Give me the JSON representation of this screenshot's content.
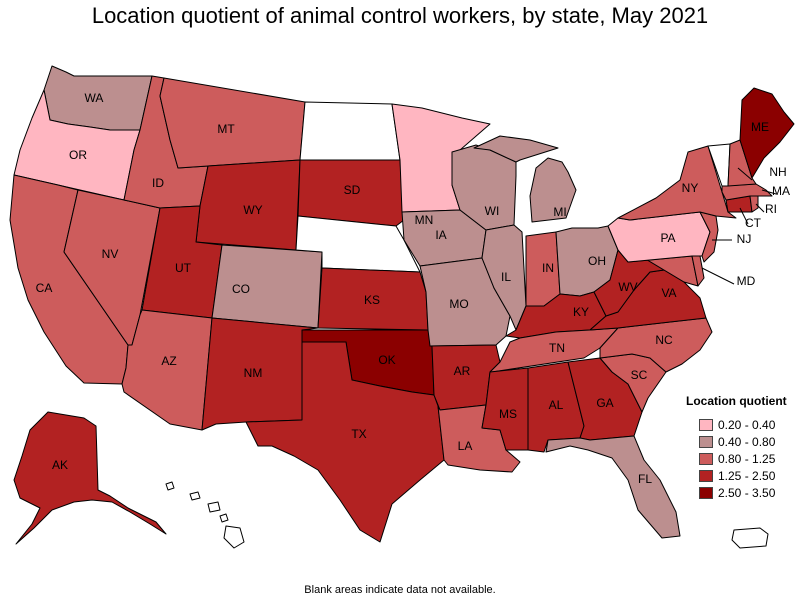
{
  "title": "Location quotient of animal control workers, by state, May 2021",
  "note": "Blank areas indicate data not available.",
  "legend": {
    "title": "Location quotient",
    "items": [
      {
        "label": "0.20 - 0.40",
        "color": "#ffb6c1"
      },
      {
        "label": "0.40 - 0.80",
        "color": "#bc8f8f"
      },
      {
        "label": "0.80 - 1.25",
        "color": "#cd5c5c"
      },
      {
        "label": "1.25 - 2.50",
        "color": "#b22222"
      },
      {
        "label": "2.50 - 3.50",
        "color": "#8b0000"
      }
    ]
  },
  "states": {
    "WA": {
      "label": "WA",
      "class": "0.40 - 0.80"
    },
    "OR": {
      "label": "OR",
      "class": "0.20 - 0.40"
    },
    "CA": {
      "label": "CA",
      "class": "0.80 - 1.25"
    },
    "NV": {
      "label": "NV",
      "class": "0.80 - 1.25"
    },
    "ID": {
      "label": "ID",
      "class": "0.80 - 1.25"
    },
    "MT": {
      "label": "MT",
      "class": "0.80 - 1.25"
    },
    "WY": {
      "label": "WY",
      "class": "1.25 - 2.50"
    },
    "UT": {
      "label": "UT",
      "class": "1.25 - 2.50"
    },
    "AZ": {
      "label": "AZ",
      "class": "0.80 - 1.25"
    },
    "CO": {
      "label": "CO",
      "class": "0.40 - 0.80"
    },
    "NM": {
      "label": "NM",
      "class": "1.25 - 2.50"
    },
    "ND": {
      "label": "",
      "class": "no data"
    },
    "SD": {
      "label": "SD",
      "class": "1.25 - 2.50"
    },
    "NE": {
      "label": "",
      "class": "no data"
    },
    "KS": {
      "label": "KS",
      "class": "1.25 - 2.50"
    },
    "OK": {
      "label": "OK",
      "class": "2.50 - 3.50"
    },
    "TX": {
      "label": "TX",
      "class": "1.25 - 2.50"
    },
    "MN": {
      "label": "MN",
      "class": "0.20 - 0.40"
    },
    "IA": {
      "label": "IA",
      "class": "0.40 - 0.80"
    },
    "MO": {
      "label": "MO",
      "class": "0.40 - 0.80"
    },
    "AR": {
      "label": "AR",
      "class": "1.25 - 2.50"
    },
    "LA": {
      "label": "LA",
      "class": "0.80 - 1.25"
    },
    "WI": {
      "label": "WI",
      "class": "0.40 - 0.80"
    },
    "IL": {
      "label": "IL",
      "class": "0.40 - 0.80"
    },
    "MI": {
      "label": "MI",
      "class": "0.40 - 0.80"
    },
    "IN": {
      "label": "IN",
      "class": "0.80 - 1.25"
    },
    "OH": {
      "label": "OH",
      "class": "0.40 - 0.80"
    },
    "KY": {
      "label": "KY",
      "class": "1.25 - 2.50"
    },
    "TN": {
      "label": "TN",
      "class": "0.80 - 1.25"
    },
    "MS": {
      "label": "MS",
      "class": "1.25 - 2.50"
    },
    "AL": {
      "label": "AL",
      "class": "1.25 - 2.50"
    },
    "GA": {
      "label": "GA",
      "class": "1.25 - 2.50"
    },
    "FL": {
      "label": "FL",
      "class": "0.40 - 0.80"
    },
    "SC": {
      "label": "SC",
      "class": "0.80 - 1.25"
    },
    "NC": {
      "label": "NC",
      "class": "0.80 - 1.25"
    },
    "VA": {
      "label": "VA",
      "class": "1.25 - 2.50"
    },
    "WV": {
      "label": "WV",
      "class": "1.25 - 2.50"
    },
    "MD": {
      "label": "MD",
      "class": "0.80 - 1.25"
    },
    "DE": {
      "label": "",
      "class": "0.80 - 1.25"
    },
    "PA": {
      "label": "PA",
      "class": "0.20 - 0.40"
    },
    "NJ": {
      "label": "NJ",
      "class": "0.80 - 1.25"
    },
    "NY": {
      "label": "NY",
      "class": "0.80 - 1.25"
    },
    "CT": {
      "label": "CT",
      "class": "1.25 - 2.50"
    },
    "RI": {
      "label": "RI",
      "class": "0.80 - 1.25"
    },
    "MA": {
      "label": "MA",
      "class": "0.80 - 1.25"
    },
    "VT": {
      "label": "",
      "class": "no data"
    },
    "NH": {
      "label": "NH",
      "class": "0.80 - 1.25"
    },
    "ME": {
      "label": "ME",
      "class": "2.50 - 3.50"
    },
    "AK": {
      "label": "AK",
      "class": "1.25 - 2.50"
    },
    "HI": {
      "label": "",
      "class": "no data"
    },
    "PR": {
      "label": "",
      "class": "no data"
    }
  }
}
